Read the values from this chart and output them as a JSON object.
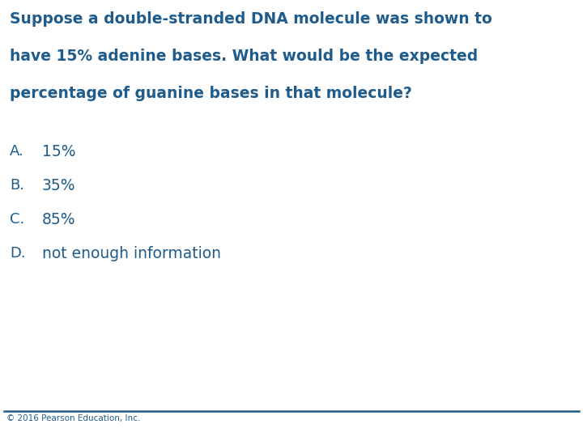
{
  "title_line1": "Suppose a double-stranded DNA molecule was shown to",
  "title_line2": "have 15% adenine bases. What would be the expected",
  "title_line3": "percentage of guanine bases in that molecule?",
  "options": [
    {
      "letter": "A.",
      "text": "15%"
    },
    {
      "letter": "B.",
      "text": "35%"
    },
    {
      "letter": "C.",
      "text": "85%"
    },
    {
      "letter": "D.",
      "text": "not enough information"
    }
  ],
  "text_color": "#1F5C8B",
  "background_color": "#ffffff",
  "footer_text": "© 2016 Pearson Education, Inc.",
  "footer_color": "#1F5C8B",
  "title_fontsize": 13.5,
  "option_letter_fontsize": 13.0,
  "option_text_fontsize": 13.5,
  "footer_fontsize": 7.5,
  "line_color": "#1F5C8B",
  "title_bold": true
}
